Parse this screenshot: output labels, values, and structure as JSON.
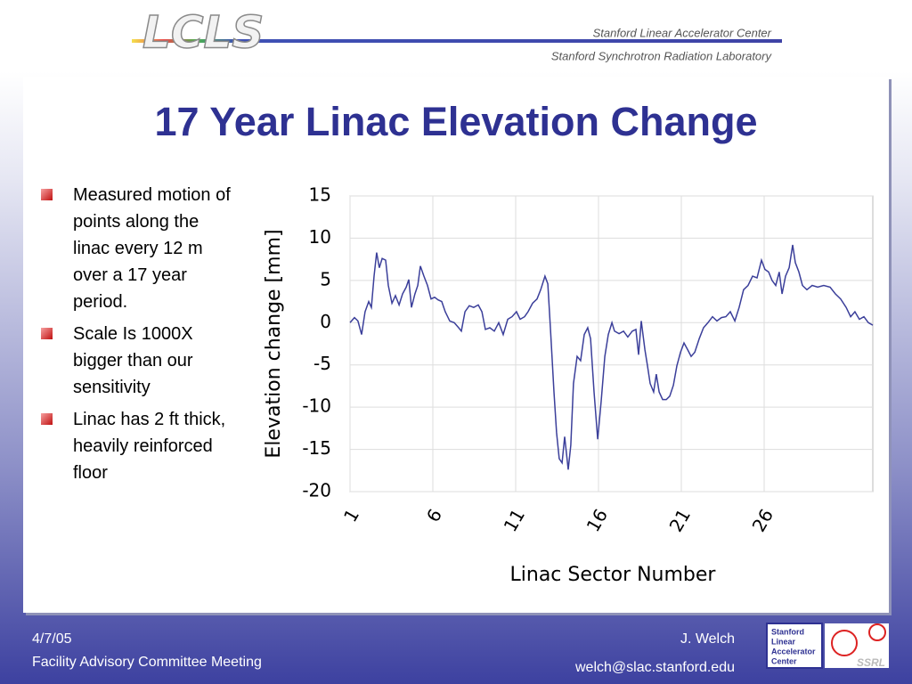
{
  "header": {
    "logo": "LCLS",
    "org1": "Stanford Linear Accelerator Center",
    "org2": "Stanford Synchrotron Radiation Laboratory"
  },
  "title": "17 Year Linac Elevation Change",
  "bullets": [
    "Measured motion of points along the linac every 12 m over a 17 year period.",
    "Scale Is 1000X bigger than our sensitivity",
    "Linac has 2 ft thick, heavily reinforced floor"
  ],
  "footer": {
    "date": "4/7/05",
    "meeting": "Facility Advisory Committee Meeting",
    "author": "J. Welch",
    "email": "welch@slac.stanford.edu",
    "slac_logo": [
      "Stanford",
      "Linear",
      "Accelerator",
      "Center"
    ],
    "ssrl_logo": "SSRL"
  },
  "chart_data": {
    "type": "line",
    "xlabel": "Linac Sector Number",
    "ylabel": "Elevation change [mm]",
    "color": "#3b3f9a",
    "grid": true,
    "xlim": [
      1,
      32.56
    ],
    "xticks": [
      1,
      6,
      11,
      16,
      21,
      26
    ],
    "ylim": [
      -20,
      15
    ],
    "yticks": [
      -20,
      -15,
      -10,
      -5,
      0,
      5,
      10,
      15
    ],
    "x": [
      1.0,
      1.27,
      1.48,
      1.7,
      1.91,
      2.13,
      2.29,
      2.45,
      2.61,
      2.77,
      2.94,
      3.15,
      3.31,
      3.53,
      3.74,
      3.96,
      4.17,
      4.39,
      4.55,
      4.71,
      4.92,
      5.09,
      5.25,
      5.46,
      5.68,
      5.89,
      6.11,
      6.32,
      6.54,
      6.75,
      7.02,
      7.29,
      7.56,
      7.72,
      7.94,
      8.2,
      8.47,
      8.74,
      8.96,
      9.17,
      9.44,
      9.71,
      9.98,
      10.25,
      10.52,
      10.78,
      11.05,
      11.27,
      11.54,
      11.75,
      12.02,
      12.29,
      12.51,
      12.77,
      12.94,
      13.1,
      13.31,
      13.47,
      13.63,
      13.8,
      13.96,
      14.17,
      14.33,
      14.49,
      14.71,
      14.92,
      15.14,
      15.35,
      15.52,
      15.73,
      15.95,
      16.16,
      16.38,
      16.59,
      16.81,
      16.97,
      17.24,
      17.51,
      17.77,
      18.04,
      18.26,
      18.42,
      18.58,
      18.8,
      18.96,
      19.12,
      19.33,
      19.49,
      19.66,
      19.87,
      20.09,
      20.3,
      20.52,
      20.73,
      20.95,
      21.16,
      21.38,
      21.59,
      21.81,
      22.08,
      22.34,
      22.61,
      22.88,
      23.15,
      23.42,
      23.69,
      23.96,
      24.23,
      24.49,
      24.76,
      25.03,
      25.3,
      25.57,
      25.84,
      26.05,
      26.27,
      26.48,
      26.7,
      26.91,
      27.08,
      27.29,
      27.51,
      27.72,
      27.88,
      28.1,
      28.31,
      28.58,
      28.9,
      29.23,
      29.6,
      29.98,
      30.3,
      30.62,
      30.95,
      31.22,
      31.48,
      31.75,
      32.02,
      32.29,
      32.56
    ],
    "values": [
      0,
      0.6,
      0.2,
      -1.4,
      1.3,
      2.5,
      1.8,
      5.5,
      8.3,
      6.5,
      7.6,
      7.4,
      4.4,
      2.3,
      3.2,
      2.1,
      3.4,
      4.2,
      5.1,
      1.8,
      3.4,
      4.4,
      6.7,
      5.5,
      4.4,
      2.8,
      3,
      2.7,
      2.5,
      1.3,
      0.2,
      0,
      -0.6,
      -1,
      1.3,
      2,
      1.8,
      2.1,
      1.3,
      -0.8,
      -0.6,
      -1,
      0,
      -1.4,
      0.4,
      0.7,
      1.3,
      0.4,
      0.7,
      1.3,
      2.3,
      2.8,
      3.9,
      5.5,
      4.6,
      -0.8,
      -8.2,
      -13,
      -16.1,
      -16.6,
      -13.5,
      -17.4,
      -14.5,
      -7.2,
      -4,
      -4.5,
      -1.4,
      -0.6,
      -1.9,
      -8.2,
      -13.8,
      -9.3,
      -4,
      -1.4,
      0,
      -1,
      -1.3,
      -1,
      -1.7,
      -1,
      -0.8,
      -3.8,
      0.2,
      -3.2,
      -5.1,
      -7.2,
      -8.2,
      -6.1,
      -8.2,
      -9.1,
      -9.1,
      -8.7,
      -7.4,
      -5.1,
      -3.5,
      -2.4,
      -3.2,
      -4,
      -3.5,
      -1.9,
      -0.6,
      0,
      0.7,
      0.2,
      0.6,
      0.7,
      1.3,
      0.2,
      1.8,
      3.9,
      4.4,
      5.5,
      5.3,
      7.4,
      6.3,
      6,
      5,
      4.4,
      6,
      3.4,
      5.5,
      6.5,
      9.2,
      7.1,
      6,
      4.4,
      3.9,
      4.4,
      4.2,
      4.4,
      4.2,
      3.4,
      2.8,
      1.8,
      0.7,
      1.3,
      0.4,
      0.7,
      0,
      -0.3
    ]
  }
}
